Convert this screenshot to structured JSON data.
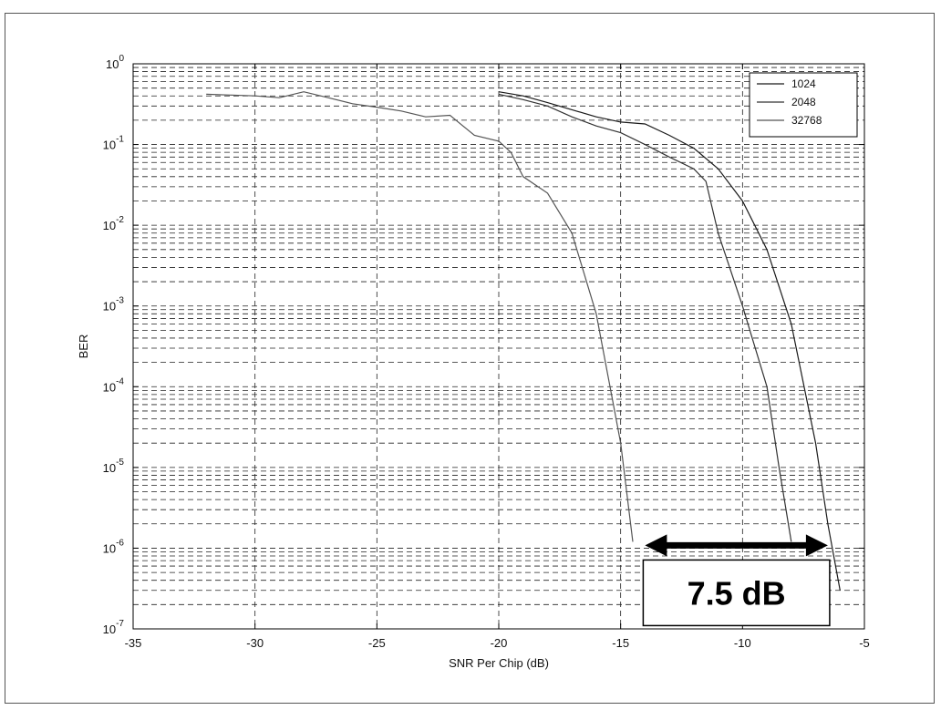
{
  "chart_data": {
    "type": "line",
    "xlabel": "SNR Per Chip (dB)",
    "ylabel": "BER",
    "xlim": [
      -35,
      -5
    ],
    "ylim": [
      1e-07,
      1
    ],
    "yscale": "log",
    "grid": true,
    "x_ticks": [
      "-35",
      "-30",
      "-25",
      "-20",
      "-15",
      "-10",
      "-5"
    ],
    "y_ticks": [
      {
        "base": "10",
        "exp": "-7"
      },
      {
        "base": "10",
        "exp": "-6"
      },
      {
        "base": "10",
        "exp": "-5"
      },
      {
        "base": "10",
        "exp": "-4"
      },
      {
        "base": "10",
        "exp": "-3"
      },
      {
        "base": "10",
        "exp": "-2"
      },
      {
        "base": "10",
        "exp": "-1"
      },
      {
        "base": "10",
        "exp": "0"
      }
    ],
    "legend_position": "top-right",
    "series": [
      {
        "name": "1024",
        "color": "#1a1a1a",
        "points": [
          [
            -20,
            0.45
          ],
          [
            -19,
            0.4
          ],
          [
            -18,
            0.33
          ],
          [
            -17,
            0.27
          ],
          [
            -16,
            0.22
          ],
          [
            -15,
            0.19
          ],
          [
            -14,
            0.18
          ],
          [
            -13,
            0.13
          ],
          [
            -12,
            0.09
          ],
          [
            -11,
            0.05
          ],
          [
            -10,
            0.02
          ],
          [
            -9,
            0.005
          ],
          [
            -8,
            0.0006
          ],
          [
            -7,
            2e-05
          ],
          [
            -6.5,
            2e-06
          ],
          [
            -6,
            3e-07
          ]
        ]
      },
      {
        "name": "2048",
        "color": "#333333",
        "points": [
          [
            -20,
            0.42
          ],
          [
            -19,
            0.36
          ],
          [
            -18,
            0.3
          ],
          [
            -17,
            0.22
          ],
          [
            -16,
            0.17
          ],
          [
            -15,
            0.14
          ],
          [
            -14,
            0.1
          ],
          [
            -13,
            0.07
          ],
          [
            -12,
            0.05
          ],
          [
            -11.5,
            0.035
          ],
          [
            -11,
            0.008
          ],
          [
            -10,
            0.001
          ],
          [
            -9,
            0.0001
          ],
          [
            -8.5,
            1e-05
          ],
          [
            -8,
            1.2e-06
          ]
        ]
      },
      {
        "name": "32768",
        "color": "#555555",
        "points": [
          [
            -32,
            0.42
          ],
          [
            -31,
            0.41
          ],
          [
            -30,
            0.4
          ],
          [
            -29,
            0.38
          ],
          [
            -28,
            0.45
          ],
          [
            -27,
            0.38
          ],
          [
            -26,
            0.32
          ],
          [
            -25,
            0.29
          ],
          [
            -24,
            0.26
          ],
          [
            -23,
            0.22
          ],
          [
            -22,
            0.23
          ],
          [
            -21,
            0.13
          ],
          [
            -20,
            0.11
          ],
          [
            -19.5,
            0.08
          ],
          [
            -19,
            0.04
          ],
          [
            -18,
            0.025
          ],
          [
            -17,
            0.008
          ],
          [
            -16,
            0.0008
          ],
          [
            -15,
            2e-05
          ],
          [
            -14.5,
            1.2e-06
          ]
        ]
      }
    ],
    "annotation": {
      "text": "7.5 dB",
      "arrow_from_x": -14,
      "arrow_to_x": -6.5,
      "arrow_y": 1.2e-06
    }
  }
}
